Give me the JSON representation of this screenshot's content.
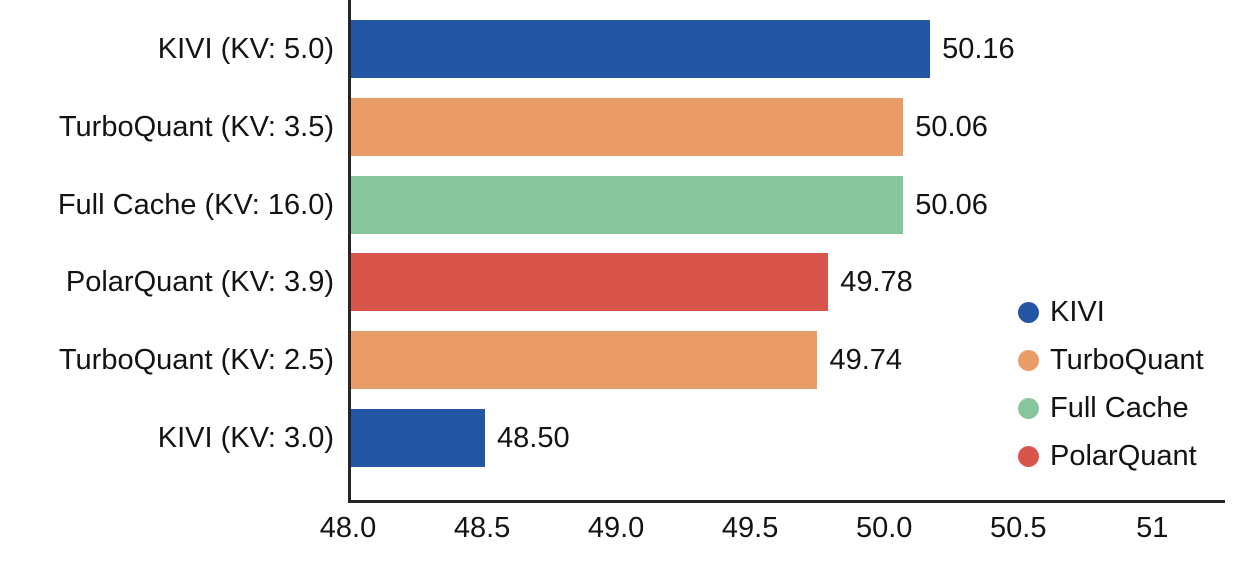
{
  "chart_data": {
    "type": "bar",
    "orientation": "horizontal",
    "title": "",
    "xlabel": "",
    "ylabel": "",
    "categories": [
      "KIVI (KV: 5.0)",
      "TurboQuant (KV: 3.5)",
      "Full Cache (KV: 16.0)",
      "PolarQuant (KV: 3.9)",
      "TurboQuant (KV: 2.5)",
      "KIVI (KV: 3.0)"
    ],
    "values": [
      50.16,
      50.06,
      50.06,
      49.78,
      49.74,
      48.5
    ],
    "value_labels": [
      "50.16",
      "50.06",
      "50.06",
      "49.78",
      "49.74",
      "48.50"
    ],
    "bar_series": [
      "KIVI",
      "TurboQuant",
      "Full Cache",
      "PolarQuant",
      "TurboQuant",
      "KIVI"
    ],
    "series_colors": {
      "KIVI": "#2456A4",
      "TurboQuant": "#E99C68",
      "Full Cache": "#87C59D",
      "PolarQuant": "#D9544B"
    },
    "xlim": [
      48.0,
      51.26
    ],
    "xticks": [
      "48.0",
      "48.5",
      "49.0",
      "49.5",
      "50.0",
      "50.5",
      "51"
    ],
    "xtick_values": [
      48.0,
      48.5,
      49.0,
      49.5,
      50.0,
      50.5,
      51.0
    ],
    "grid": false,
    "legend": {
      "position": "right",
      "entries": [
        {
          "label": "KIVI",
          "color": "#2456A4"
        },
        {
          "label": "TurboQuant",
          "color": "#E99C68"
        },
        {
          "label": "Full Cache",
          "color": "#87C59D"
        },
        {
          "label": "PolarQuant",
          "color": "#D9544B"
        }
      ]
    },
    "axis_color": "#262626",
    "text_color": "#131313",
    "background": "#ffffff"
  }
}
